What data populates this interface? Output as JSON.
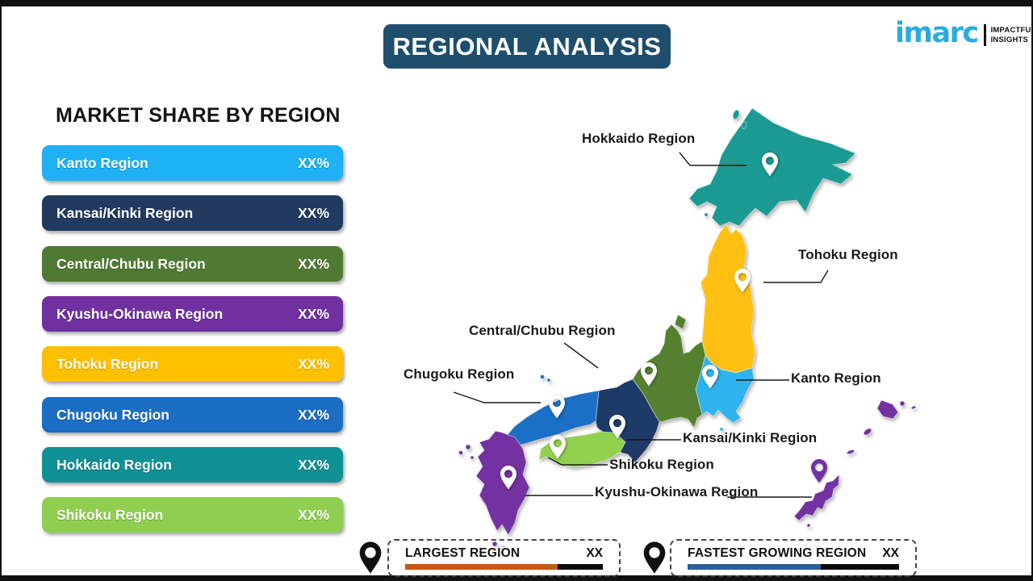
{
  "title": "REGIONAL ANALYSIS",
  "logo": {
    "brand": "imarc",
    "tagline1": "IMPACTFUL",
    "tagline2": "INSIGHTS",
    "brand_color": "#29abe2"
  },
  "market_share": {
    "heading": "MARKET SHARE BY REGION",
    "items": [
      {
        "label": "Kanto Region",
        "value": "XX%",
        "color": "#1eb1f3"
      },
      {
        "label": "Kansai/Kinki Region",
        "value": "XX%",
        "color": "#223a60"
      },
      {
        "label": "Central/Chubu Region",
        "value": "XX%",
        "color": "#507a33"
      },
      {
        "label": "Kyushu-Okinawa Region",
        "value": "XX%",
        "color": "#7030a0"
      },
      {
        "label": "Tohoku Region",
        "value": "XX%",
        "color": "#ffc000"
      },
      {
        "label": "Chugoku Region",
        "value": "XX%",
        "color": "#1b6ec4"
      },
      {
        "label": "Hokkaido Region",
        "value": "XX%",
        "color": "#0f9095"
      },
      {
        "label": "Shikoku Region",
        "value": "XX%",
        "color": "#8fce51"
      }
    ]
  },
  "map": {
    "regions": [
      {
        "id": "hokkaido",
        "label": "Hokkaido Region",
        "color": "#1a9a93"
      },
      {
        "id": "tohoku",
        "label": "Tohoku Region",
        "color": "#ffc013"
      },
      {
        "id": "kanto",
        "label": "Kanto Region",
        "color": "#2fb3ef"
      },
      {
        "id": "chubu",
        "label": "Central/Chubu Region",
        "color": "#55802f"
      },
      {
        "id": "kansai",
        "label": "Kansai/Kinki Region",
        "color": "#1e3a66"
      },
      {
        "id": "chugoku",
        "label": "Chugoku Region",
        "color": "#1b6fc5"
      },
      {
        "id": "shikoku",
        "label": "Shikoku Region",
        "color": "#92d050"
      },
      {
        "id": "kyushu",
        "label": "Kyushu-Okinawa Region",
        "color": "#7331a1"
      }
    ]
  },
  "legend": {
    "largest": {
      "label": "LARGEST REGION",
      "value": "XX",
      "bar_color": "#c55a11",
      "bar_fill_pct": 77
    },
    "fastest": {
      "label": "FASTEST GROWING REGION",
      "value": "XX",
      "bar_color": "#2e5e9c",
      "bar_fill_pct": 63
    }
  }
}
